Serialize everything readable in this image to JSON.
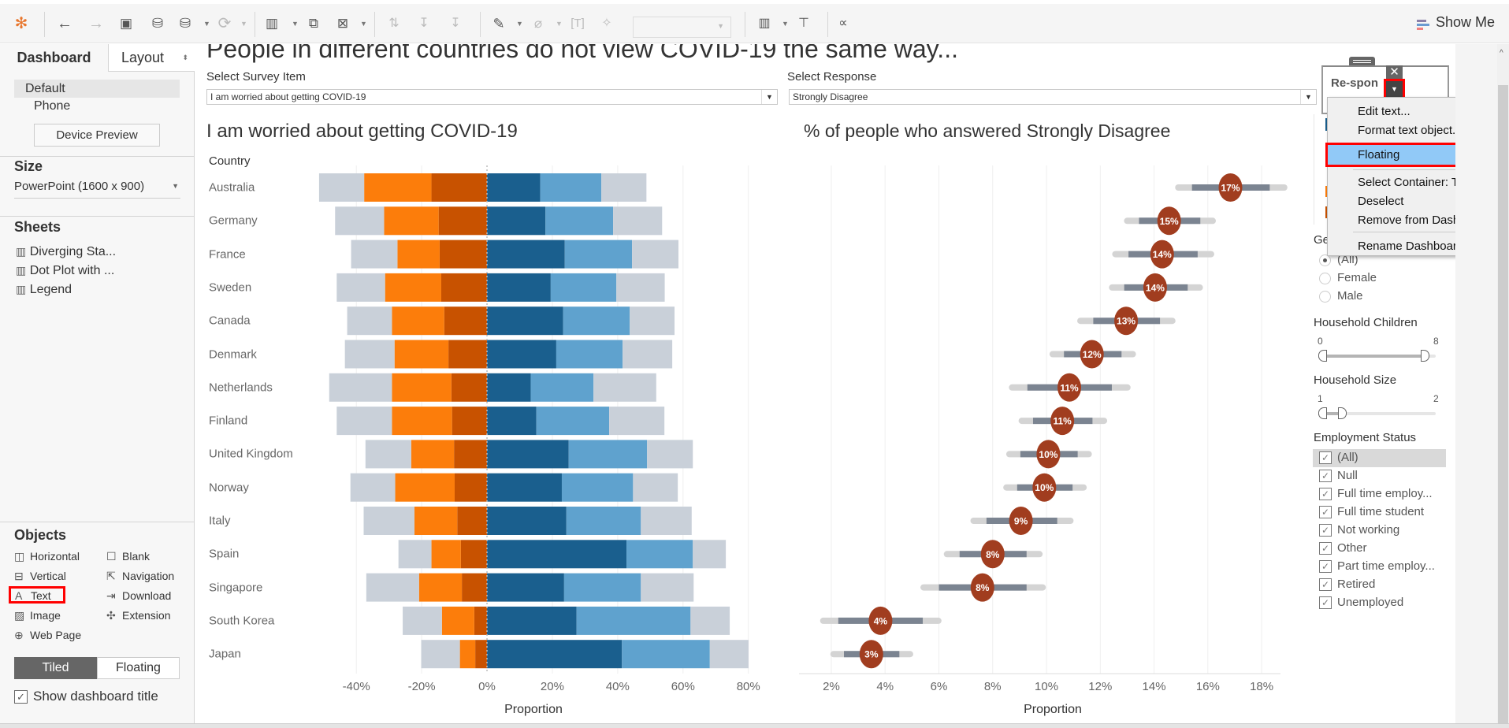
{
  "toolbar": {
    "icons": [
      "tableau-logo-icon",
      "undo-icon",
      "redo-icon",
      "save-icon",
      "new-data-source-icon",
      "pause-updates-icon",
      "refresh-icon",
      "new-worksheet-icon",
      "duplicate-icon",
      "clear-icon",
      "swap-icon",
      "sort-ascending-icon",
      "sort-descending-icon",
      "highlight-icon",
      "group-icon",
      "show-labels-icon",
      "pin-icon",
      "show-cards-icon",
      "presentation-icon",
      "share-icon"
    ],
    "show_me": "Show Me"
  },
  "left_panel": {
    "tabs": [
      "Dashboard",
      "Layout"
    ],
    "devices": [
      "Default",
      "Phone"
    ],
    "device_preview": "Device Preview",
    "size_heading": "Size",
    "size_value": "PowerPoint (1600 x 900)",
    "sheets_heading": "Sheets",
    "sheets": [
      "Diverging Sta...",
      "Dot Plot with ...",
      "Legend"
    ],
    "objects_heading": "Objects",
    "objects": [
      {
        "label": "Horizontal",
        "icon": "horizontal-container-icon"
      },
      {
        "label": "Blank",
        "icon": "blank-icon"
      },
      {
        "label": "Vertical",
        "icon": "vertical-container-icon"
      },
      {
        "label": "Navigation",
        "icon": "navigation-icon"
      },
      {
        "label": "Text",
        "icon": "text-icon"
      },
      {
        "label": "Download",
        "icon": "download-icon"
      },
      {
        "label": "Image",
        "icon": "image-icon"
      },
      {
        "label": "Extension",
        "icon": "extension-icon"
      },
      {
        "label": "Web Page",
        "icon": "web-page-icon"
      }
    ],
    "layout_modes": [
      "Tiled",
      "Floating"
    ],
    "active_layout_mode": "Tiled",
    "show_title": "Show dashboard title",
    "show_title_checked": true
  },
  "dashboard": {
    "title": "People in different countries do not view COVID-19 the same way...",
    "survey_label": "Select Survey Item",
    "survey_value": "I am worried about getting COVID-19",
    "response_label": "Select Response",
    "response_value": "Strongly Disagree",
    "text_object": "Re-sponse"
  },
  "context_menu": {
    "items": [
      "Edit text...",
      "Format text object...",
      "Floating",
      "Select Container: Tiled",
      "Deselect",
      "Remove from Dashboard",
      "Rename Dashboard Item..."
    ],
    "highlighted": "Floating"
  },
  "filters": {
    "gender": {
      "label": "Gender",
      "options": [
        "(All)",
        "Female",
        "Male"
      ],
      "selected": "(All)"
    },
    "household_children": {
      "label": "Household Children",
      "min": "0",
      "max": "8",
      "range": [
        0,
        8
      ]
    },
    "household_size": {
      "label": "Household Size",
      "min": "1",
      "max": "2",
      "range": [
        1,
        1.2
      ]
    },
    "employment": {
      "label": "Employment Status",
      "options": [
        "(All)",
        "Null",
        "Full time employ...",
        "Full time student",
        "Not working",
        "Other",
        "Part time employ...",
        "Retired",
        "Unemployed"
      ]
    }
  },
  "colors": {
    "neutral": "#c9d0d9",
    "orange": "#fc7d0b",
    "dark_orange": "#c85200",
    "dark_blue": "#1a5f8e",
    "light_blue": "#5fa2ce",
    "dot": "#a13d1f",
    "ci_outer": "#d4d4d4",
    "ci_inner": "#7b8491",
    "highlight_red": "#ff0000",
    "menu_highlight": "#91c9f7"
  },
  "chart_data": [
    {
      "type": "bar",
      "subtype": "diverging-stacked",
      "title": "I am worried about getting COVID-19",
      "row_header": "Country",
      "xlabel": "Proportion",
      "xlim": [
        -55,
        82
      ],
      "xticks": [
        -40,
        -20,
        0,
        20,
        40,
        60,
        80
      ],
      "xtick_labels": [
        "-40%",
        "-20%",
        "0%",
        "20%",
        "40%",
        "60%",
        "80%"
      ],
      "grid": true,
      "categories": [
        "Australia",
        "Germany",
        "France",
        "Sweden",
        "Canada",
        "Denmark",
        "Netherlands",
        "Finland",
        "United Kingdom",
        "Norway",
        "Italy",
        "Spain",
        "Singapore",
        "South Korea",
        "Japan"
      ],
      "series": [
        {
          "color": "#c85200",
          "side": "negative",
          "order": 1,
          "values": [
            17.0,
            14.8,
            14.5,
            14.0,
            13.1,
            11.8,
            10.9,
            10.7,
            10.1,
            9.9,
            9.1,
            8.0,
            7.7,
            3.9,
            3.6
          ]
        },
        {
          "color": "#fc7d0b",
          "side": "negative",
          "order": 2,
          "values": [
            20.6,
            16.7,
            12.9,
            17.2,
            16.0,
            16.5,
            18.2,
            18.4,
            13.1,
            18.2,
            13.1,
            9.0,
            13.1,
            9.9,
            4.7
          ]
        },
        {
          "color": "#1a5f8e",
          "side": "positive",
          "order": 1,
          "values": [
            16.3,
            17.9,
            23.8,
            19.5,
            23.3,
            21.2,
            13.4,
            15.1,
            25.0,
            22.9,
            24.3,
            42.7,
            23.6,
            27.4,
            41.3
          ]
        },
        {
          "color": "#5fa2ce",
          "side": "positive",
          "order": 2,
          "values": [
            18.7,
            20.7,
            20.6,
            20.1,
            20.4,
            20.3,
            19.2,
            22.3,
            24.0,
            21.8,
            22.8,
            20.3,
            23.5,
            34.9,
            26.9
          ]
        },
        {
          "color": "#c9d0d9",
          "side": "split",
          "order": 3,
          "values": [
            27.6,
            30.0,
            28.4,
            29.6,
            27.4,
            30.4,
            38.4,
            33.8,
            28.0,
            27.4,
            31.1,
            20.2,
            32.3,
            24.0,
            23.7
          ]
        }
      ]
    },
    {
      "type": "scatter",
      "subtype": "dot-plot-with-intervals",
      "title": "% of people who answered Strongly Disagree",
      "xlabel": "Proportion",
      "xlim": [
        0.8,
        18.7
      ],
      "xticks": [
        2,
        4,
        6,
        8,
        10,
        12,
        14,
        16,
        18
      ],
      "xtick_labels": [
        "2%",
        "4%",
        "6%",
        "8%",
        "10%",
        "12%",
        "14%",
        "16%",
        "18%"
      ],
      "grid": true,
      "categories": [
        "Australia",
        "Germany",
        "France",
        "Sweden",
        "Canada",
        "Denmark",
        "Netherlands",
        "Finland",
        "United Kingdom",
        "Norway",
        "Italy",
        "Spain",
        "Singapore",
        "South Korea",
        "Japan"
      ],
      "values": [
        16.84,
        14.56,
        14.3,
        14.04,
        12.96,
        11.69,
        10.85,
        10.59,
        10.07,
        9.92,
        9.05,
        8.0,
        7.62,
        3.83,
        3.49
      ],
      "labels": [
        "17%",
        "15%",
        "14%",
        "14%",
        "13%",
        "12%",
        "11%",
        "11%",
        "10%",
        "10%",
        "9%",
        "8%",
        "8%",
        "4%",
        "3%"
      ],
      "outer_interval": [
        [
          14.9,
          18.84
        ],
        [
          13.0,
          16.18
        ],
        [
          12.56,
          16.12
        ],
        [
          12.44,
          15.7
        ],
        [
          11.26,
          14.68
        ],
        [
          10.23,
          13.21
        ],
        [
          8.72,
          13.01
        ],
        [
          9.08,
          12.14
        ],
        [
          8.62,
          11.57
        ],
        [
          8.51,
          11.38
        ],
        [
          7.29,
          10.89
        ],
        [
          6.3,
          9.74
        ],
        [
          5.43,
          9.86
        ],
        [
          1.7,
          5.98
        ],
        [
          2.08,
          4.93
        ]
      ],
      "inner_interval": [
        [
          15.41,
          18.3
        ],
        [
          13.44,
          15.72
        ],
        [
          13.05,
          15.62
        ],
        [
          12.89,
          15.25
        ],
        [
          11.74,
          14.22
        ],
        [
          10.65,
          12.79
        ],
        [
          9.29,
          12.43
        ],
        [
          9.5,
          11.71
        ],
        [
          9.03,
          11.16
        ],
        [
          8.91,
          10.97
        ],
        [
          7.77,
          10.4
        ],
        [
          6.77,
          9.26
        ],
        [
          6.0,
          9.26
        ],
        [
          2.26,
          5.4
        ],
        [
          2.47,
          4.53
        ]
      ]
    }
  ]
}
